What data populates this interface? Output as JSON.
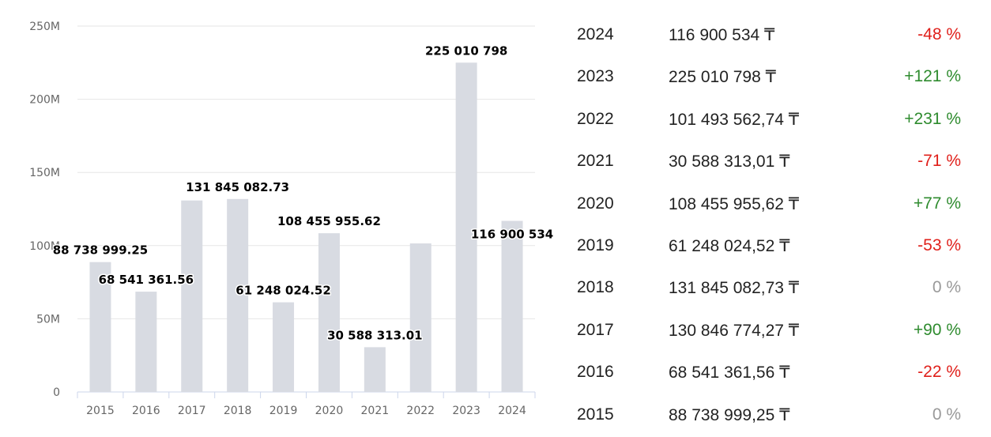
{
  "chart_data": {
    "type": "bar",
    "categories": [
      "2015",
      "2016",
      "2017",
      "2018",
      "2019",
      "2020",
      "2021",
      "2022",
      "2023",
      "2024"
    ],
    "values": [
      88738999.25,
      68541361.56,
      130846774.27,
      131845082.73,
      61248024.52,
      108455955.62,
      30588313.01,
      101493562.74,
      225010798,
      116900534
    ],
    "data_labels": [
      {
        "category": "2015",
        "text": "88 738 999.25"
      },
      {
        "category": "2016",
        "text": "68 541 361.56"
      },
      {
        "category": "2018",
        "text": "131 845 082.73"
      },
      {
        "category": "2019",
        "text": "61 248 024.52"
      },
      {
        "category": "2020",
        "text": "108 455 955.62"
      },
      {
        "category": "2021",
        "text": "30 588 313.01"
      },
      {
        "category": "2023",
        "text": "225 010 798"
      },
      {
        "category": "2024",
        "text": "116 900 534"
      }
    ],
    "yticks": [
      {
        "value": 0,
        "label": "0"
      },
      {
        "value": 50000000,
        "label": "50M"
      },
      {
        "value": 100000000,
        "label": "100M"
      },
      {
        "value": 150000000,
        "label": "150M"
      },
      {
        "value": 200000000,
        "label": "200M"
      },
      {
        "value": 250000000,
        "label": "250M"
      }
    ],
    "ylim": [
      0,
      250000000
    ],
    "grid": true,
    "title": "",
    "xlabel": "",
    "ylabel": "",
    "colors": {
      "bar": "#d8dbe2",
      "grid": "#e6e6e6",
      "axis": "#ccd6eb"
    }
  },
  "table": {
    "rows": [
      {
        "year": "2024",
        "amount": "116 900 534 ₸",
        "change": "-48 %",
        "trend": "neg"
      },
      {
        "year": "2023",
        "amount": "225 010 798 ₸",
        "change": "+121 %",
        "trend": "pos"
      },
      {
        "year": "2022",
        "amount": "101 493 562,74 ₸",
        "change": "+231 %",
        "trend": "pos"
      },
      {
        "year": "2021",
        "amount": "30 588 313,01 ₸",
        "change": "-71 %",
        "trend": "neg"
      },
      {
        "year": "2020",
        "amount": "108 455 955,62 ₸",
        "change": "+77 %",
        "trend": "pos"
      },
      {
        "year": "2019",
        "amount": "61 248 024,52 ₸",
        "change": "-53 %",
        "trend": "neg"
      },
      {
        "year": "2018",
        "amount": "131 845 082,73 ₸",
        "change": "0 %",
        "trend": "zero"
      },
      {
        "year": "2017",
        "amount": "130 846 774,27 ₸",
        "change": "+90 %",
        "trend": "pos"
      },
      {
        "year": "2016",
        "amount": "68 541 361,56 ₸",
        "change": "-22 %",
        "trend": "neg"
      },
      {
        "year": "2015",
        "amount": "88 738 999,25 ₸",
        "change": "0 %",
        "trend": "zero"
      }
    ],
    "colors": {
      "pos": "#2e8b2e",
      "neg": "#e0201b",
      "zero": "#999999"
    }
  }
}
